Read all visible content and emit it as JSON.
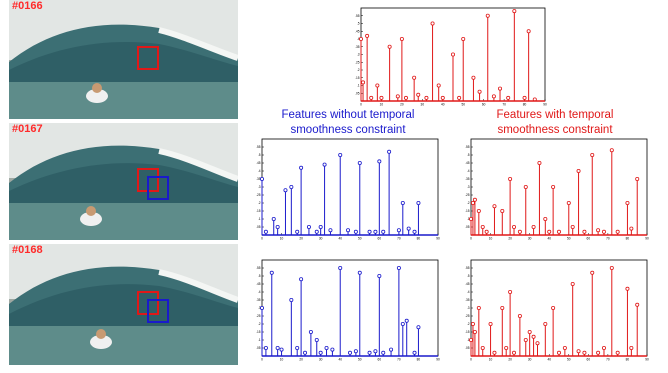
{
  "frames": [
    {
      "label": "#0166",
      "boxes": [
        "red"
      ]
    },
    {
      "label": "#0167",
      "boxes": [
        "red",
        "blue"
      ]
    },
    {
      "label": "#0168",
      "boxes": [
        "red",
        "blue"
      ]
    }
  ],
  "captions": {
    "without": "Features without temporal smoothness constraint",
    "with": "Features with temporal smoothness constraint"
  },
  "colors": {
    "red": "#e01818",
    "blue": "#1a1acc",
    "frame_label": "#ff2a2a"
  },
  "chart_data": [
    {
      "id": "frame166",
      "type": "stem",
      "color": "#e01818",
      "xlim": [
        0,
        90
      ],
      "ylim": [
        0,
        0.6
      ],
      "xticks": [
        0,
        10,
        20,
        30,
        40,
        50,
        60,
        70,
        80,
        90
      ],
      "yticks": [
        0.05,
        0.1,
        0.15,
        0.2,
        0.25,
        0.3,
        0.35,
        0.4,
        0.45,
        0.5,
        0.55
      ],
      "x": [
        0,
        1,
        3,
        5,
        8,
        10,
        14,
        18,
        20,
        22,
        26,
        28,
        32,
        35,
        38,
        40,
        45,
        48,
        50,
        55,
        58,
        62,
        65,
        68,
        72,
        75,
        80,
        82,
        85
      ],
      "y": [
        0.4,
        0.12,
        0.42,
        0.02,
        0.1,
        0.02,
        0.35,
        0.03,
        0.4,
        0.02,
        0.15,
        0.04,
        0.02,
        0.5,
        0.1,
        0.02,
        0.3,
        0.02,
        0.4,
        0.15,
        0.06,
        0.55,
        0.03,
        0.08,
        0.02,
        0.58,
        0.02,
        0.45,
        0.01
      ]
    },
    {
      "id": "frame167-without",
      "type": "stem",
      "color": "#1a1acc",
      "xlim": [
        0,
        90
      ],
      "ylim": [
        0,
        0.6
      ],
      "xticks": [
        0,
        10,
        20,
        30,
        40,
        50,
        60,
        70,
        80,
        90
      ],
      "yticks": [
        0.05,
        0.1,
        0.15,
        0.2,
        0.25,
        0.3,
        0.35,
        0.4,
        0.45,
        0.5,
        0.55
      ],
      "x": [
        0,
        2,
        6,
        8,
        12,
        15,
        18,
        20,
        24,
        28,
        30,
        32,
        35,
        40,
        44,
        48,
        50,
        55,
        58,
        60,
        62,
        65,
        70,
        72,
        75,
        78,
        80
      ],
      "y": [
        0.35,
        0.02,
        0.1,
        0.05,
        0.28,
        0.3,
        0.02,
        0.42,
        0.05,
        0.02,
        0.05,
        0.44,
        0.03,
        0.5,
        0.03,
        0.02,
        0.45,
        0.02,
        0.02,
        0.46,
        0.02,
        0.52,
        0.03,
        0.2,
        0.04,
        0.02,
        0.2
      ]
    },
    {
      "id": "frame167-with",
      "type": "stem",
      "color": "#e01818",
      "xlim": [
        0,
        90
      ],
      "ylim": [
        0,
        0.6
      ],
      "xticks": [
        0,
        10,
        20,
        30,
        40,
        50,
        60,
        70,
        80,
        90
      ],
      "yticks": [
        0.05,
        0.1,
        0.15,
        0.2,
        0.25,
        0.3,
        0.35,
        0.4,
        0.45,
        0.5,
        0.55
      ],
      "x": [
        0,
        1,
        2,
        4,
        6,
        8,
        12,
        16,
        20,
        22,
        25,
        28,
        32,
        35,
        38,
        40,
        42,
        45,
        50,
        52,
        55,
        58,
        62,
        65,
        68,
        72,
        75,
        80,
        82,
        85
      ],
      "y": [
        0.1,
        0.2,
        0.22,
        0.15,
        0.05,
        0.02,
        0.18,
        0.15,
        0.35,
        0.05,
        0.02,
        0.3,
        0.05,
        0.45,
        0.1,
        0.02,
        0.3,
        0.02,
        0.2,
        0.05,
        0.4,
        0.02,
        0.5,
        0.03,
        0.02,
        0.53,
        0.02,
        0.2,
        0.04,
        0.35
      ]
    },
    {
      "id": "frame168-without",
      "type": "stem",
      "color": "#1a1acc",
      "xlim": [
        0,
        90
      ],
      "ylim": [
        0,
        0.6
      ],
      "xticks": [
        0,
        10,
        20,
        30,
        40,
        50,
        60,
        70,
        80,
        90
      ],
      "yticks": [
        0.05,
        0.1,
        0.15,
        0.2,
        0.25,
        0.3,
        0.35,
        0.4,
        0.45,
        0.5,
        0.55
      ],
      "x": [
        0,
        2,
        5,
        8,
        10,
        15,
        18,
        20,
        22,
        25,
        28,
        30,
        33,
        36,
        40,
        45,
        48,
        50,
        55,
        58,
        60,
        62,
        66,
        70,
        72,
        74,
        78,
        80
      ],
      "y": [
        0.3,
        0.05,
        0.52,
        0.05,
        0.04,
        0.35,
        0.05,
        0.48,
        0.02,
        0.15,
        0.1,
        0.02,
        0.05,
        0.04,
        0.55,
        0.02,
        0.03,
        0.52,
        0.02,
        0.03,
        0.5,
        0.02,
        0.04,
        0.55,
        0.2,
        0.22,
        0.02,
        0.18
      ]
    },
    {
      "id": "frame168-with",
      "type": "stem",
      "color": "#e01818",
      "xlim": [
        0,
        90
      ],
      "ylim": [
        0,
        0.6
      ],
      "xticks": [
        0,
        10,
        20,
        30,
        40,
        50,
        60,
        70,
        80,
        90
      ],
      "yticks": [
        0.05,
        0.1,
        0.15,
        0.2,
        0.25,
        0.3,
        0.35,
        0.4,
        0.45,
        0.5,
        0.55
      ],
      "x": [
        0,
        1,
        2,
        4,
        6,
        10,
        12,
        16,
        18,
        20,
        22,
        25,
        28,
        30,
        32,
        34,
        38,
        42,
        45,
        48,
        52,
        55,
        58,
        62,
        65,
        68,
        72,
        75,
        80,
        82,
        85
      ],
      "y": [
        0.1,
        0.2,
        0.15,
        0.3,
        0.05,
        0.2,
        0.02,
        0.3,
        0.05,
        0.4,
        0.02,
        0.25,
        0.1,
        0.15,
        0.12,
        0.08,
        0.2,
        0.3,
        0.02,
        0.05,
        0.45,
        0.03,
        0.02,
        0.52,
        0.02,
        0.05,
        0.55,
        0.02,
        0.42,
        0.05,
        0.32
      ]
    }
  ]
}
